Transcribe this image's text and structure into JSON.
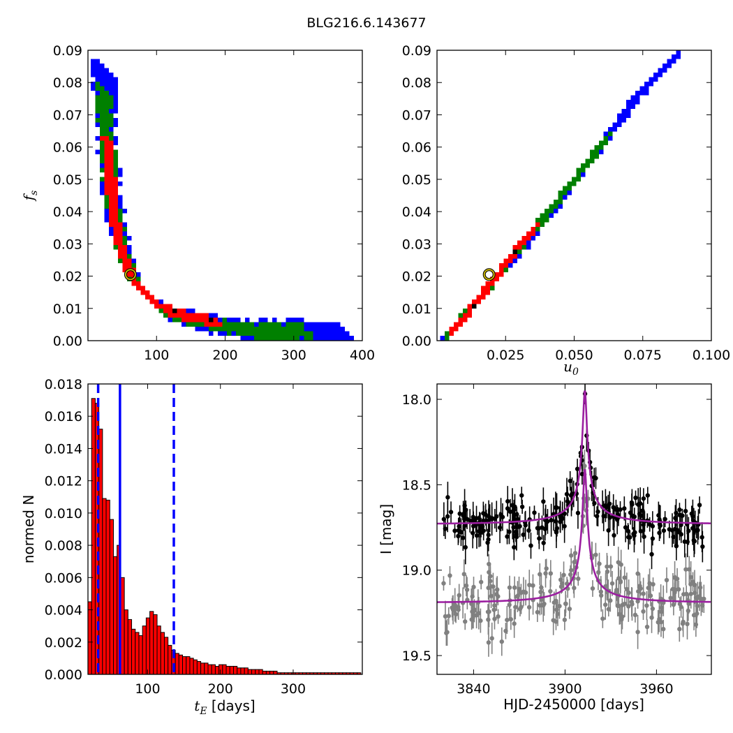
{
  "page": {
    "title": "BLG216.6.143677"
  },
  "chart_data": [
    {
      "panel": "top-left",
      "type": "heatmap",
      "xlabel": "",
      "ylabel": "f_s",
      "xlim": [
        0,
        400
      ],
      "ylim": [
        0,
        0.09
      ],
      "xticks": [
        "100",
        "200",
        "300",
        "400"
      ],
      "yticks": [
        "0.00",
        "0.01",
        "0.02",
        "0.03",
        "0.04",
        "0.05",
        "0.06",
        "0.07",
        "0.08",
        "0.09"
      ],
      "series": [
        {
          "color": "#0000ff",
          "points": [
            [
              20,
              0.085
            ],
            [
              22,
              0.07
            ],
            [
              25,
              0.06
            ],
            [
              30,
              0.05
            ],
            [
              35,
              0.04
            ],
            [
              40,
              0.035
            ],
            [
              50,
              0.028
            ],
            [
              60,
              0.022
            ],
            [
              70,
              0.018
            ],
            [
              80,
              0.015
            ],
            [
              100,
              0.011
            ],
            [
              120,
              0.009
            ],
            [
              150,
              0.007
            ],
            [
              180,
              0.006
            ],
            [
              220,
              0.0045
            ],
            [
              260,
              0.004
            ],
            [
              320,
              0.0035
            ],
            [
              380,
              0.003
            ]
          ]
        },
        {
          "color": "#008000",
          "points": [
            [
              20,
              0.078
            ],
            [
              23,
              0.065
            ],
            [
              28,
              0.052
            ],
            [
              33,
              0.043
            ],
            [
              40,
              0.035
            ],
            [
              50,
              0.027
            ],
            [
              60,
              0.021
            ],
            [
              75,
              0.016
            ],
            [
              90,
              0.013
            ],
            [
              110,
              0.01
            ],
            [
              140,
              0.0075
            ],
            [
              170,
              0.006
            ],
            [
              210,
              0.0045
            ],
            [
              260,
              0.0038
            ],
            [
              320,
              0.0033
            ]
          ]
        },
        {
          "color": "#ff0000",
          "points": [
            [
              25,
              0.063
            ],
            [
              28,
              0.055
            ],
            [
              32,
              0.045
            ],
            [
              36,
              0.038
            ],
            [
              42,
              0.032
            ],
            [
              50,
              0.026
            ],
            [
              58,
              0.022
            ],
            [
              65,
              0.019
            ],
            [
              80,
              0.0155
            ],
            [
              95,
              0.0125
            ],
            [
              110,
              0.0105
            ],
            [
              130,
              0.009
            ],
            [
              160,
              0.0075
            ],
            [
              190,
              0.0065
            ]
          ]
        }
      ],
      "best_fit": {
        "x": 62,
        "y": 0.0205
      }
    },
    {
      "panel": "top-right",
      "type": "heatmap",
      "xlabel": "u_0",
      "ylabel": "",
      "xlim": [
        0,
        0.1
      ],
      "ylim": [
        0,
        0.09
      ],
      "xticks": [
        "0.025",
        "0.050",
        "0.075",
        "0.100"
      ],
      "yticks": [
        "0.00",
        "0.01",
        "0.02",
        "0.03",
        "0.04",
        "0.05",
        "0.06",
        "0.07",
        "0.08",
        "0.09"
      ],
      "series": [
        {
          "color": "#0000ff",
          "points": [
            [
              0.004,
              0.003
            ],
            [
              0.01,
              0.009
            ],
            [
              0.02,
              0.019
            ],
            [
              0.03,
              0.029
            ],
            [
              0.04,
              0.04
            ],
            [
              0.05,
              0.051
            ],
            [
              0.06,
              0.062
            ],
            [
              0.067,
              0.07
            ],
            [
              0.072,
              0.076
            ],
            [
              0.078,
              0.082
            ],
            [
              0.085,
              0.088
            ]
          ]
        },
        {
          "color": "#008000",
          "points": [
            [
              0.005,
              0.004
            ],
            [
              0.01,
              0.009
            ],
            [
              0.02,
              0.019
            ],
            [
              0.03,
              0.03
            ],
            [
              0.04,
              0.041
            ],
            [
              0.05,
              0.051
            ],
            [
              0.057,
              0.059
            ],
            [
              0.062,
              0.064
            ]
          ]
        },
        {
          "color": "#ff0000",
          "points": [
            [
              0.005,
              0.004
            ],
            [
              0.01,
              0.009
            ],
            [
              0.015,
              0.014
            ],
            [
              0.02,
              0.02
            ],
            [
              0.025,
              0.025
            ],
            [
              0.03,
              0.031
            ],
            [
              0.035,
              0.036
            ]
          ]
        }
      ],
      "best_fit": {
        "x": 0.019,
        "y": 0.0205
      }
    },
    {
      "panel": "bottom-left",
      "type": "bar",
      "xlabel": "t_E [days]",
      "ylabel": "normed N",
      "xlim": [
        18,
        395
      ],
      "ylim": [
        0,
        0.018
      ],
      "xticks": [
        "100",
        "200",
        "300"
      ],
      "yticks": [
        "0.000",
        "0.002",
        "0.004",
        "0.006",
        "0.008",
        "0.010",
        "0.012",
        "0.014",
        "0.016",
        "0.018"
      ],
      "bin_start": 18,
      "bin_width": 5,
      "values": [
        0.0045,
        0.0171,
        0.0168,
        0.0152,
        0.0109,
        0.0108,
        0.0096,
        0.0073,
        0.008,
        0.006,
        0.004,
        0.0034,
        0.0028,
        0.0026,
        0.0024,
        0.003,
        0.0035,
        0.0039,
        0.0037,
        0.003,
        0.0026,
        0.0023,
        0.0018,
        0.0015,
        0.0013,
        0.0012,
        0.0011,
        0.0011,
        0.001,
        0.0009,
        0.0008,
        0.0007,
        0.0007,
        0.0006,
        0.0006,
        0.0005,
        0.0006,
        0.0006,
        0.0005,
        0.0005,
        0.0005,
        0.0004,
        0.0004,
        0.0004,
        0.0003,
        0.0003,
        0.0003,
        0.0003,
        0.0002,
        0.0002,
        0.0002,
        0.0002,
        0.0001,
        0.0001,
        0.0001,
        0.0001,
        0.0001,
        0.0001,
        0.0001,
        0.0001,
        0.0001,
        0.0001,
        0.0001,
        0.0001,
        0.0001,
        0.0001,
        0.0001,
        0.0001,
        0.0001,
        0.0001,
        0.0001,
        0.0001,
        0.0001,
        0.0001,
        0.0001
      ],
      "bar_color": "#ff0000",
      "median": 62,
      "interval": [
        32,
        136
      ],
      "line_color": "#0000ff"
    },
    {
      "panel": "bottom-right",
      "type": "scatter",
      "xlabel": "HJD-2450000 [days]",
      "ylabel": "I [mag]",
      "xlim": [
        3816,
        3996
      ],
      "ylim": [
        19.61,
        17.91
      ],
      "xticks": [
        "3840",
        "3900",
        "3960"
      ],
      "yticks": [
        "18.0",
        "18.5",
        "19.0",
        "19.5"
      ],
      "model_color": "#9b1fa0",
      "model": {
        "t0": 3913,
        "u0": 0.019,
        "tE": 62,
        "fs": 0.0205,
        "base_black": 18.73,
        "base_grey": 19.19
      },
      "data_black_color": "#000000",
      "data_grey_color": "#808080"
    }
  ]
}
